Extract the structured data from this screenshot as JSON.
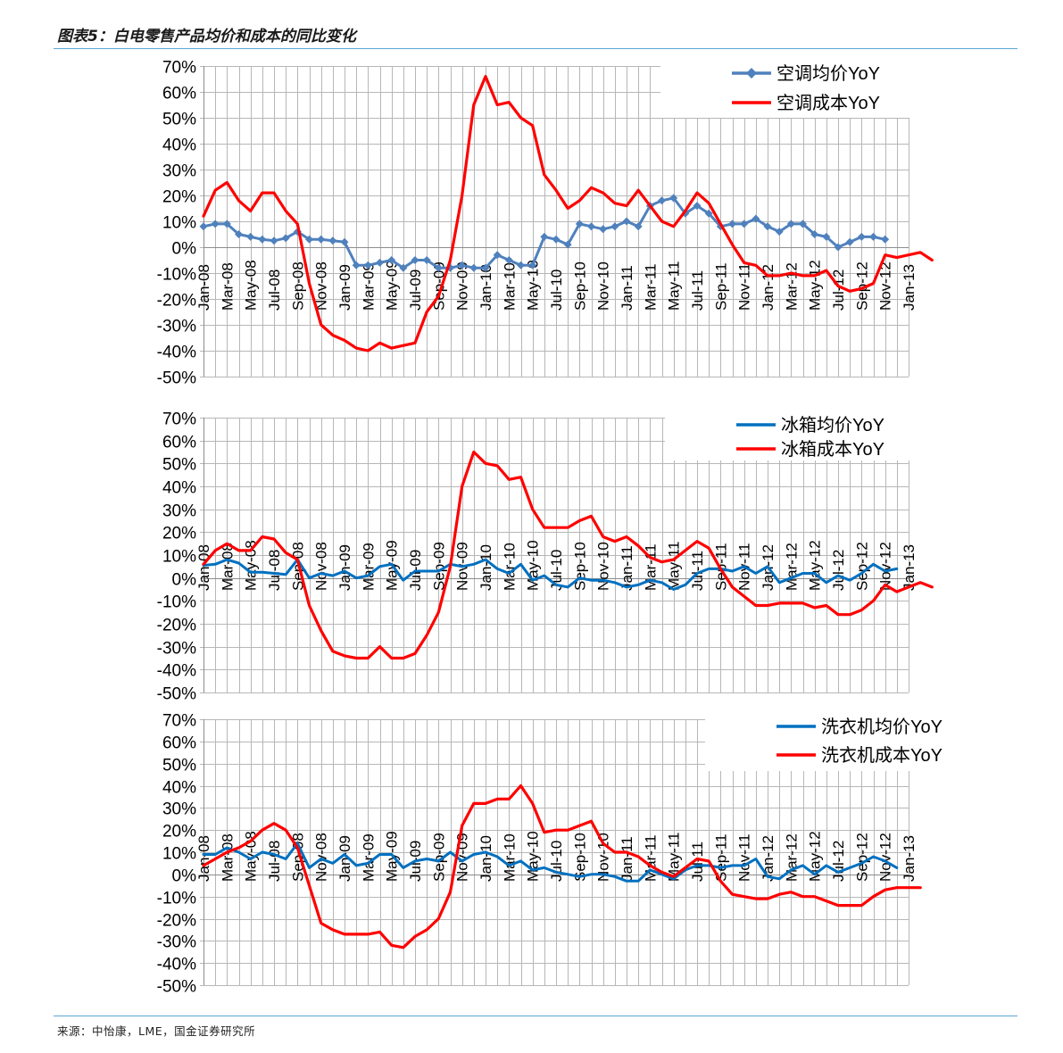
{
  "figure_title": "图表5：白电零售产品均价和成本的同比变化",
  "source": "来源：中怡康，LME，国金证券研究所",
  "chart_data": [
    {
      "type": "line",
      "yticks": [
        "70%",
        "60%",
        "50%",
        "40%",
        "30%",
        "20%",
        "10%",
        "0%",
        "-10%",
        "-20%",
        "-30%",
        "-40%",
        "-50%"
      ],
      "ylim": [
        -50,
        70
      ],
      "grid": true,
      "legend_position": "top-right",
      "xticks": [
        "Jan-08",
        "Mar-08",
        "May-08",
        "Jul-08",
        "Sep-08",
        "Nov-08",
        "Jan-09",
        "Mar-09",
        "May-09",
        "Jul-09",
        "Sep-09",
        "Nov-09",
        "Jan-10",
        "Mar-10",
        "May-10",
        "Jul-10",
        "Sep-10",
        "Nov-10",
        "Jan-11",
        "Mar-11",
        "May-11",
        "Jul-11",
        "Sep-11",
        "Nov-11",
        "Jan-12",
        "Mar-12",
        "May-12",
        "Jul-12",
        "Sep-12",
        "Nov-12",
        "Jan-13"
      ],
      "series": [
        {
          "name": "空调均价YoY",
          "color": "#4f81bd",
          "marker": "diamond",
          "values": [
            8,
            9,
            9,
            5,
            4,
            3,
            2.5,
            3.5,
            6,
            3,
            3,
            2.5,
            2,
            -7,
            -7,
            -6,
            -5,
            -8,
            -5,
            -5,
            -8,
            -8,
            -7,
            -8,
            -8,
            -3,
            -5,
            -7,
            -7,
            4,
            3,
            1,
            9,
            8,
            7,
            8,
            10,
            8,
            16,
            18,
            19,
            13,
            16,
            13,
            8,
            9,
            9,
            11,
            8,
            6,
            9,
            9,
            5,
            4,
            0,
            2,
            4,
            4,
            3
          ]
        },
        {
          "name": "空调成本YoY",
          "color": "#ff0000",
          "marker": "none",
          "values": [
            12,
            22,
            25,
            18,
            14,
            21,
            21,
            14,
            9,
            -14,
            -30,
            -34,
            -36,
            -39,
            -40,
            -37,
            -39,
            -38,
            -37,
            -25,
            -19,
            -5,
            20,
            55,
            66,
            55,
            56,
            50,
            47,
            28,
            22,
            15,
            18,
            23,
            21,
            17,
            16,
            22,
            16,
            10,
            8,
            14,
            21,
            17,
            9,
            1,
            -6,
            -7,
            -11,
            -11,
            -10,
            -11,
            -11,
            -9,
            -15,
            -17,
            -16,
            -14,
            -3,
            -4,
            -3,
            -2,
            -5
          ]
        }
      ]
    },
    {
      "type": "line",
      "yticks": [
        "70%",
        "60%",
        "50%",
        "40%",
        "30%",
        "20%",
        "10%",
        "0%",
        "-10%",
        "-20%",
        "-30%",
        "-40%",
        "-50%"
      ],
      "ylim": [
        -50,
        70
      ],
      "grid": true,
      "legend_position": "top-right",
      "xticks": [
        "Jan-08",
        "Mar-08",
        "May-08",
        "Jul-08",
        "Sep-08",
        "Nov-08",
        "Jan-09",
        "Mar-09",
        "May-09",
        "Jul-09",
        "Sep-09",
        "Nov-09",
        "Jan-10",
        "Mar-10",
        "May-10",
        "Jul-10",
        "Sep-10",
        "Nov-10",
        "Jan-11",
        "Mar-11",
        "May-11",
        "Jul-11",
        "Sep-11",
        "Nov-11",
        "Jan-12",
        "Mar-12",
        "May-12",
        "Jul-12",
        "Sep-12",
        "Nov-12",
        "Jan-13"
      ],
      "series": [
        {
          "name": "冰箱均价YoY",
          "color": "#0070c0",
          "marker": "none",
          "values": [
            5.5,
            6,
            8,
            6.5,
            2.5,
            2.5,
            2,
            1.5,
            8,
            0,
            2,
            1,
            3,
            0,
            1,
            5,
            6,
            -1,
            3,
            3,
            3,
            6,
            5,
            6,
            8,
            4,
            2,
            6,
            -1,
            1,
            -3,
            -4,
            0,
            -1,
            -1,
            -2,
            -4,
            -3,
            -1,
            -2,
            -5,
            -3,
            2,
            4,
            4,
            3,
            5,
            2,
            5,
            -2,
            0,
            2,
            2,
            -2,
            1,
            -1,
            2,
            6,
            3,
            4
          ]
        },
        {
          "name": "冰箱成本YoY",
          "color": "#ff0000",
          "marker": "none",
          "values": [
            6,
            12,
            15,
            12,
            12,
            18,
            17,
            11,
            8,
            -12,
            -23,
            -32,
            -34,
            -35,
            -35,
            -30,
            -35,
            -35,
            -33,
            -25,
            -15,
            5,
            40,
            55,
            50,
            49,
            43,
            44,
            30,
            22,
            22,
            22,
            25,
            27,
            18,
            16,
            18,
            14,
            9,
            7,
            8,
            12,
            16,
            13,
            4,
            -4,
            -8,
            -12,
            -12,
            -11,
            -11,
            -11,
            -13,
            -12,
            -16,
            -16,
            -14,
            -10,
            -3,
            -6,
            -4,
            -2,
            -4
          ]
        }
      ]
    },
    {
      "type": "line",
      "yticks": [
        "70%",
        "60%",
        "50%",
        "40%",
        "30%",
        "20%",
        "10%",
        "0%",
        "-10%",
        "-20%",
        "-30%",
        "-40%",
        "-50%"
      ],
      "ylim": [
        -50,
        70
      ],
      "grid": true,
      "legend_position": "top-right",
      "xticks": [
        "Jan-08",
        "Mar-08",
        "May-08",
        "Jul-08",
        "Sep-08",
        "Nov-08",
        "Jan-09",
        "Mar-09",
        "May-09",
        "Jul-09",
        "Sep-09",
        "Nov-09",
        "Jan-10",
        "Mar-10",
        "May-10",
        "Jul-10",
        "Sep-10",
        "Nov-10",
        "Jan-11",
        "Mar-11",
        "May-11",
        "Jul-11",
        "Sep-11",
        "Nov-11",
        "Jan-12",
        "Mar-12",
        "May-12",
        "Jul-12",
        "Sep-12",
        "Nov-12",
        "Jan-13"
      ],
      "series": [
        {
          "name": "洗衣机均价YoY",
          "color": "#0070c0",
          "marker": "none",
          "values": [
            9,
            9,
            12,
            10,
            7,
            10,
            9,
            7,
            14,
            3,
            7,
            5,
            9,
            4,
            5,
            9,
            9,
            3,
            6,
            7,
            6,
            10,
            6,
            9,
            10,
            8,
            4,
            6,
            2,
            3,
            1,
            0,
            -1,
            0,
            0,
            -1,
            -3,
            -3,
            2,
            0,
            -2,
            2,
            4,
            4,
            3,
            4,
            4,
            7,
            -1,
            -2,
            2,
            4,
            0,
            4,
            1,
            3,
            5,
            8,
            6,
            3
          ]
        },
        {
          "name": "洗衣机成本YoY",
          "color": "#ff0000",
          "marker": "none",
          "values": [
            4,
            7,
            10,
            12,
            15,
            20,
            23,
            20,
            12,
            -5,
            -22,
            -25,
            -27,
            -27,
            -27,
            -26,
            -32,
            -33,
            -28,
            -25,
            -20,
            -8,
            22,
            32,
            32,
            34,
            34,
            40,
            32,
            19,
            20,
            20,
            22,
            24,
            14,
            10,
            10,
            8,
            4,
            1,
            -1,
            3,
            7,
            6,
            -3,
            -9,
            -10,
            -11,
            -11,
            -9,
            -8,
            -10,
            -10,
            -12,
            -14,
            -14,
            -14,
            -10,
            -7,
            -6,
            -6,
            -6
          ]
        }
      ]
    }
  ]
}
